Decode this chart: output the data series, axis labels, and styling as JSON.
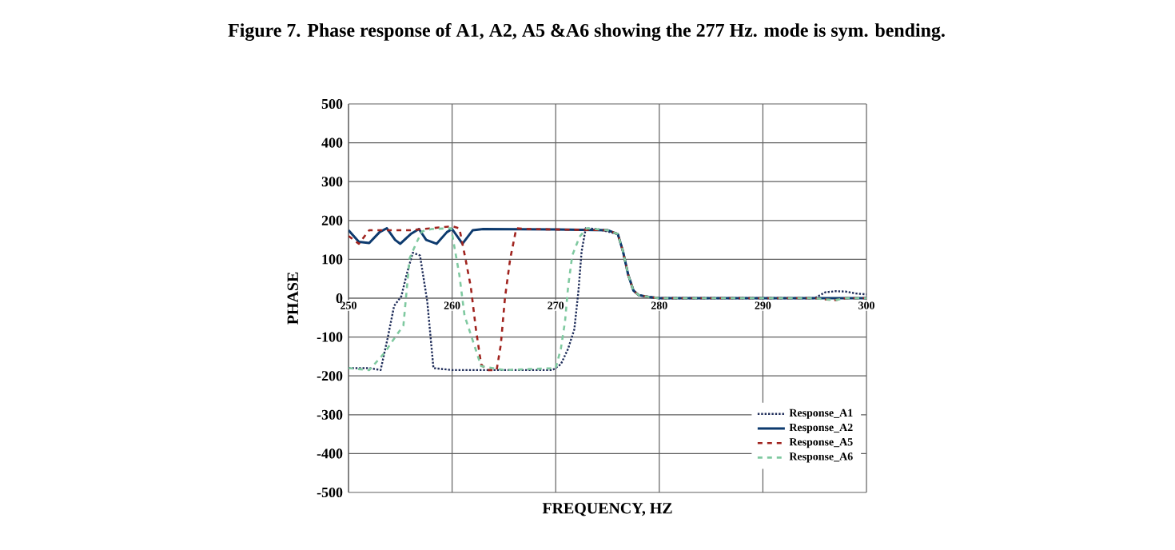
{
  "chart_data": {
    "type": "line",
    "title": "Figure 7. Phase response of A1, A2, A5 &A6 showing the 277 Hz. mode is sym. bending.",
    "xlabel": "FREQUENCY, HZ",
    "ylabel": "PHASE",
    "xlim": [
      250,
      300
    ],
    "ylim": [
      -500,
      500
    ],
    "xticks": [
      250,
      260,
      270,
      280,
      290,
      300
    ],
    "yticks": [
      -500,
      -400,
      -300,
      -200,
      -100,
      0,
      100,
      200,
      300,
      400,
      500
    ],
    "grid": true,
    "legend": "bottom right",
    "marker": "none",
    "series": [
      {
        "name": "Response_A1",
        "color": "#1f2d5a",
        "line_style": "dotted",
        "x": [
          250,
          252,
          253.1,
          253.8,
          254.4,
          255.1,
          255.6,
          256.2,
          256.9,
          257.6,
          258.2,
          260,
          265,
          269.7,
          270.5,
          271.2,
          271.8,
          272.2,
          272.5,
          272.9,
          274,
          276,
          276.5,
          277,
          277.5,
          278,
          279,
          280,
          285,
          290,
          295,
          296,
          297,
          298,
          299,
          300
        ],
        "values": [
          -180,
          -180,
          -185,
          -100,
          -20,
          5,
          60,
          117,
          110,
          -8,
          -180,
          -185,
          -185,
          -185,
          -170,
          -130,
          -80,
          20,
          120,
          180,
          178,
          165,
          120,
          60,
          20,
          8,
          3,
          0,
          0,
          0,
          0,
          15,
          18,
          17,
          12,
          10
        ]
      },
      {
        "name": "Response_A2",
        "color": "#0d3a6e",
        "line_style": "solid",
        "x": [
          250,
          251,
          252,
          253,
          253.7,
          254.5,
          255,
          256,
          256.8,
          257.5,
          258.5,
          259.5,
          260,
          261,
          262,
          263,
          270,
          275,
          276,
          276.5,
          277,
          277.5,
          278,
          279,
          280,
          285,
          290,
          295,
          300
        ],
        "values": [
          175,
          145,
          142,
          170,
          180,
          150,
          140,
          165,
          178,
          150,
          140,
          170,
          178,
          140,
          175,
          178,
          177,
          175,
          165,
          120,
          60,
          20,
          8,
          3,
          0,
          0,
          0,
          0,
          0
        ]
      },
      {
        "name": "Response_A5",
        "color": "#a0231e",
        "line_style": "dashed",
        "x": [
          250,
          251,
          252,
          256,
          260,
          260.7,
          261.3,
          261.8,
          262.3,
          262.8,
          263.3,
          264.3,
          264.7,
          265.1,
          265.6,
          266.2,
          267,
          275,
          276,
          276.5,
          277,
          277.5,
          278,
          279,
          280,
          285,
          290,
          295,
          296,
          297,
          298,
          300
        ],
        "values": [
          160,
          140,
          175,
          175,
          185,
          180,
          100,
          30,
          -80,
          -170,
          -185,
          -185,
          -120,
          0,
          100,
          180,
          178,
          175,
          165,
          120,
          60,
          20,
          8,
          3,
          0,
          0,
          0,
          0,
          -3,
          -5,
          0,
          0
        ]
      },
      {
        "name": "Response_A6",
        "color": "#7fc9a0",
        "line_style": "dashed",
        "x": [
          250,
          252,
          253.5,
          254.3,
          255.3,
          255.9,
          256.6,
          257.1,
          258,
          259.9,
          260.7,
          261.2,
          261.7,
          262.8,
          265,
          270,
          270.5,
          270.9,
          271.2,
          271.6,
          272.3,
          273,
          275,
          276,
          276.5,
          277,
          277.5,
          278,
          279,
          280,
          285,
          290,
          295,
          296,
          297,
          298,
          300
        ],
        "values": [
          -180,
          -185,
          -140,
          -108,
          -70,
          103,
          145,
          172,
          178,
          180,
          60,
          -45,
          -85,
          -175,
          -185,
          -180,
          -130,
          -60,
          30,
          110,
          158,
          180,
          175,
          165,
          120,
          60,
          20,
          8,
          3,
          0,
          0,
          0,
          0,
          -3,
          -5,
          0,
          0
        ]
      }
    ]
  }
}
